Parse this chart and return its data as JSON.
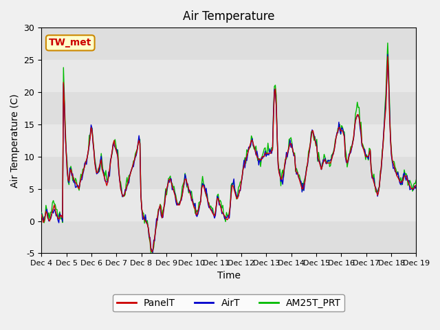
{
  "title": "Air Temperature",
  "ylabel": "Air Temperature (C)",
  "xlabel": "Time",
  "ylim": [
    -5,
    30
  ],
  "annotation": "TW_met",
  "legend_labels": [
    "PanelT",
    "AirT",
    "AM25T_PRT"
  ],
  "legend_colors": [
    "#cc0000",
    "#0000cc",
    "#00bb00"
  ],
  "x_tick_labels": [
    "Dec 4",
    "Dec 5",
    "Dec 6",
    "Dec 7",
    "Dec 8",
    "Dec 9",
    "Dec 10",
    "Dec 11",
    "Dec 12",
    "Dec 13",
    "Dec 14",
    "Dec 15",
    "Dec 16",
    "Dec 17",
    "Dec 18",
    "Dec 19"
  ],
  "ytick_labels": [
    "-5",
    "0",
    "5",
    "10",
    "15",
    "20",
    "25",
    "30"
  ],
  "ytick_vals": [
    -5,
    0,
    5,
    10,
    15,
    20,
    25,
    30
  ],
  "PanelT": [
    1.0,
    0.5,
    -0.2,
    0.0,
    0.8,
    1.5,
    1.2,
    0.5,
    0.2,
    0.0,
    0.5,
    1.0,
    1.5,
    2.0,
    2.5,
    1.8,
    1.2,
    0.8,
    0.5,
    0.3,
    0.6,
    0.9,
    0.8,
    0.5,
    21.5,
    18.0,
    13.5,
    10.5,
    8.0,
    6.5,
    6.2,
    7.5,
    8.0,
    7.5,
    7.0,
    6.5,
    6.2,
    6.0,
    5.8,
    5.5,
    5.2,
    5.0,
    6.0,
    6.5,
    7.0,
    7.5,
    8.0,
    8.5,
    9.0,
    9.5,
    10.0,
    11.0,
    12.0,
    13.0,
    14.5,
    14.0,
    12.5,
    11.0,
    9.0,
    8.0,
    7.5,
    7.5,
    8.0,
    8.5,
    9.0,
    9.5,
    8.0,
    7.5,
    7.0,
    6.5,
    6.0,
    5.5,
    6.0,
    7.0,
    8.0,
    9.0,
    10.0,
    11.0,
    12.0,
    12.5,
    11.5,
    11.0,
    10.5,
    10.0,
    8.0,
    6.5,
    5.0,
    4.5,
    4.0,
    3.8,
    4.0,
    4.5,
    5.0,
    5.5,
    6.0,
    6.5,
    7.0,
    7.5,
    8.0,
    8.5,
    9.0,
    9.5,
    10.0,
    10.5,
    11.0,
    12.0,
    12.5,
    12.0,
    4.0,
    2.0,
    1.0,
    0.5,
    0.2,
    0.0,
    -0.2,
    -0.5,
    -1.0,
    -2.0,
    -3.0,
    -4.5,
    -4.8,
    -4.5,
    -3.5,
    -2.5,
    -1.5,
    -0.5,
    0.5,
    1.5,
    2.0,
    2.5,
    1.5,
    0.5,
    1.0,
    2.0,
    3.0,
    4.0,
    5.0,
    5.5,
    6.0,
    6.5,
    6.5,
    6.0,
    5.5,
    5.0,
    4.5,
    4.0,
    3.5,
    3.0,
    2.5,
    2.5,
    2.5,
    3.0,
    3.5,
    4.0,
    5.0,
    6.0,
    6.5,
    6.5,
    6.0,
    5.5,
    5.0,
    4.5,
    4.0,
    3.5,
    3.0,
    2.5,
    2.0,
    2.0,
    1.0,
    1.0,
    1.5,
    2.0,
    2.5,
    3.0,
    5.0,
    5.5,
    5.5,
    5.0,
    4.5,
    4.0,
    3.5,
    3.0,
    2.5,
    2.0,
    1.8,
    1.5,
    1.2,
    1.0,
    0.8,
    1.5,
    2.5,
    3.5,
    3.5,
    3.0,
    2.5,
    2.0,
    1.5,
    1.2,
    1.0,
    0.8,
    0.5,
    0.3,
    0.2,
    0.5,
    1.0,
    2.5,
    4.0,
    5.5,
    5.5,
    5.0,
    4.5,
    4.0,
    3.5,
    3.5,
    4.0,
    4.5,
    5.0,
    6.0,
    7.0,
    8.0,
    8.5,
    9.0,
    9.5,
    10.0,
    10.5,
    11.0,
    11.5,
    12.0,
    12.5,
    12.5,
    12.0,
    11.5,
    11.0,
    10.5,
    10.0,
    9.8,
    9.5,
    9.5,
    9.5,
    9.5,
    10.0,
    10.0,
    10.0,
    10.5,
    10.5,
    10.5,
    10.5,
    10.5,
    10.5,
    10.5,
    11.0,
    11.0,
    16.0,
    20.0,
    20.5,
    18.0,
    13.0,
    9.0,
    7.5,
    7.0,
    6.5,
    6.5,
    7.0,
    7.5,
    8.5,
    9.5,
    10.0,
    10.5,
    11.0,
    11.5,
    12.0,
    12.0,
    11.5,
    11.0,
    10.5,
    10.0,
    8.0,
    7.5,
    7.5,
    7.0,
    6.5,
    6.0,
    5.5,
    5.0,
    5.0,
    5.5,
    6.0,
    7.0,
    8.0,
    9.0,
    10.0,
    11.0,
    12.0,
    13.0,
    14.0,
    14.0,
    13.0,
    12.5,
    12.0,
    11.5,
    10.0,
    9.5,
    9.0,
    8.5,
    8.0,
    8.5,
    9.0,
    9.5,
    9.5,
    9.0,
    9.0,
    9.0,
    9.0,
    9.0,
    9.0,
    9.5,
    10.0,
    10.5,
    11.0,
    12.0,
    13.0,
    13.5,
    14.0,
    14.5,
    14.5,
    14.0,
    14.0,
    14.0,
    13.5,
    13.0,
    10.0,
    9.5,
    9.0,
    9.5,
    10.0,
    10.5,
    11.0,
    11.5,
    12.0,
    13.0,
    14.5,
    15.5,
    16.0,
    16.5,
    16.5,
    16.0,
    15.0,
    14.0,
    12.0,
    11.5,
    11.0,
    10.5,
    10.0,
    10.0,
    10.0,
    10.0,
    10.5,
    11.0,
    8.0,
    7.0,
    6.5,
    6.0,
    5.5,
    5.0,
    4.5,
    4.0,
    4.5,
    5.5,
    7.0,
    8.5,
    10.0,
    12.0,
    14.0,
    16.0,
    17.5,
    22.0,
    25.5,
    22.0,
    16.5,
    13.0,
    10.5,
    9.5,
    9.0,
    8.5,
    8.0,
    7.5,
    7.0,
    6.8,
    6.5,
    6.2,
    6.0,
    6.0,
    6.2,
    6.5,
    7.0,
    7.0,
    7.0,
    6.5,
    6.2,
    5.8,
    5.5,
    5.2,
    5.0,
    5.0,
    5.0,
    5.2,
    5.5,
    5.5
  ]
}
